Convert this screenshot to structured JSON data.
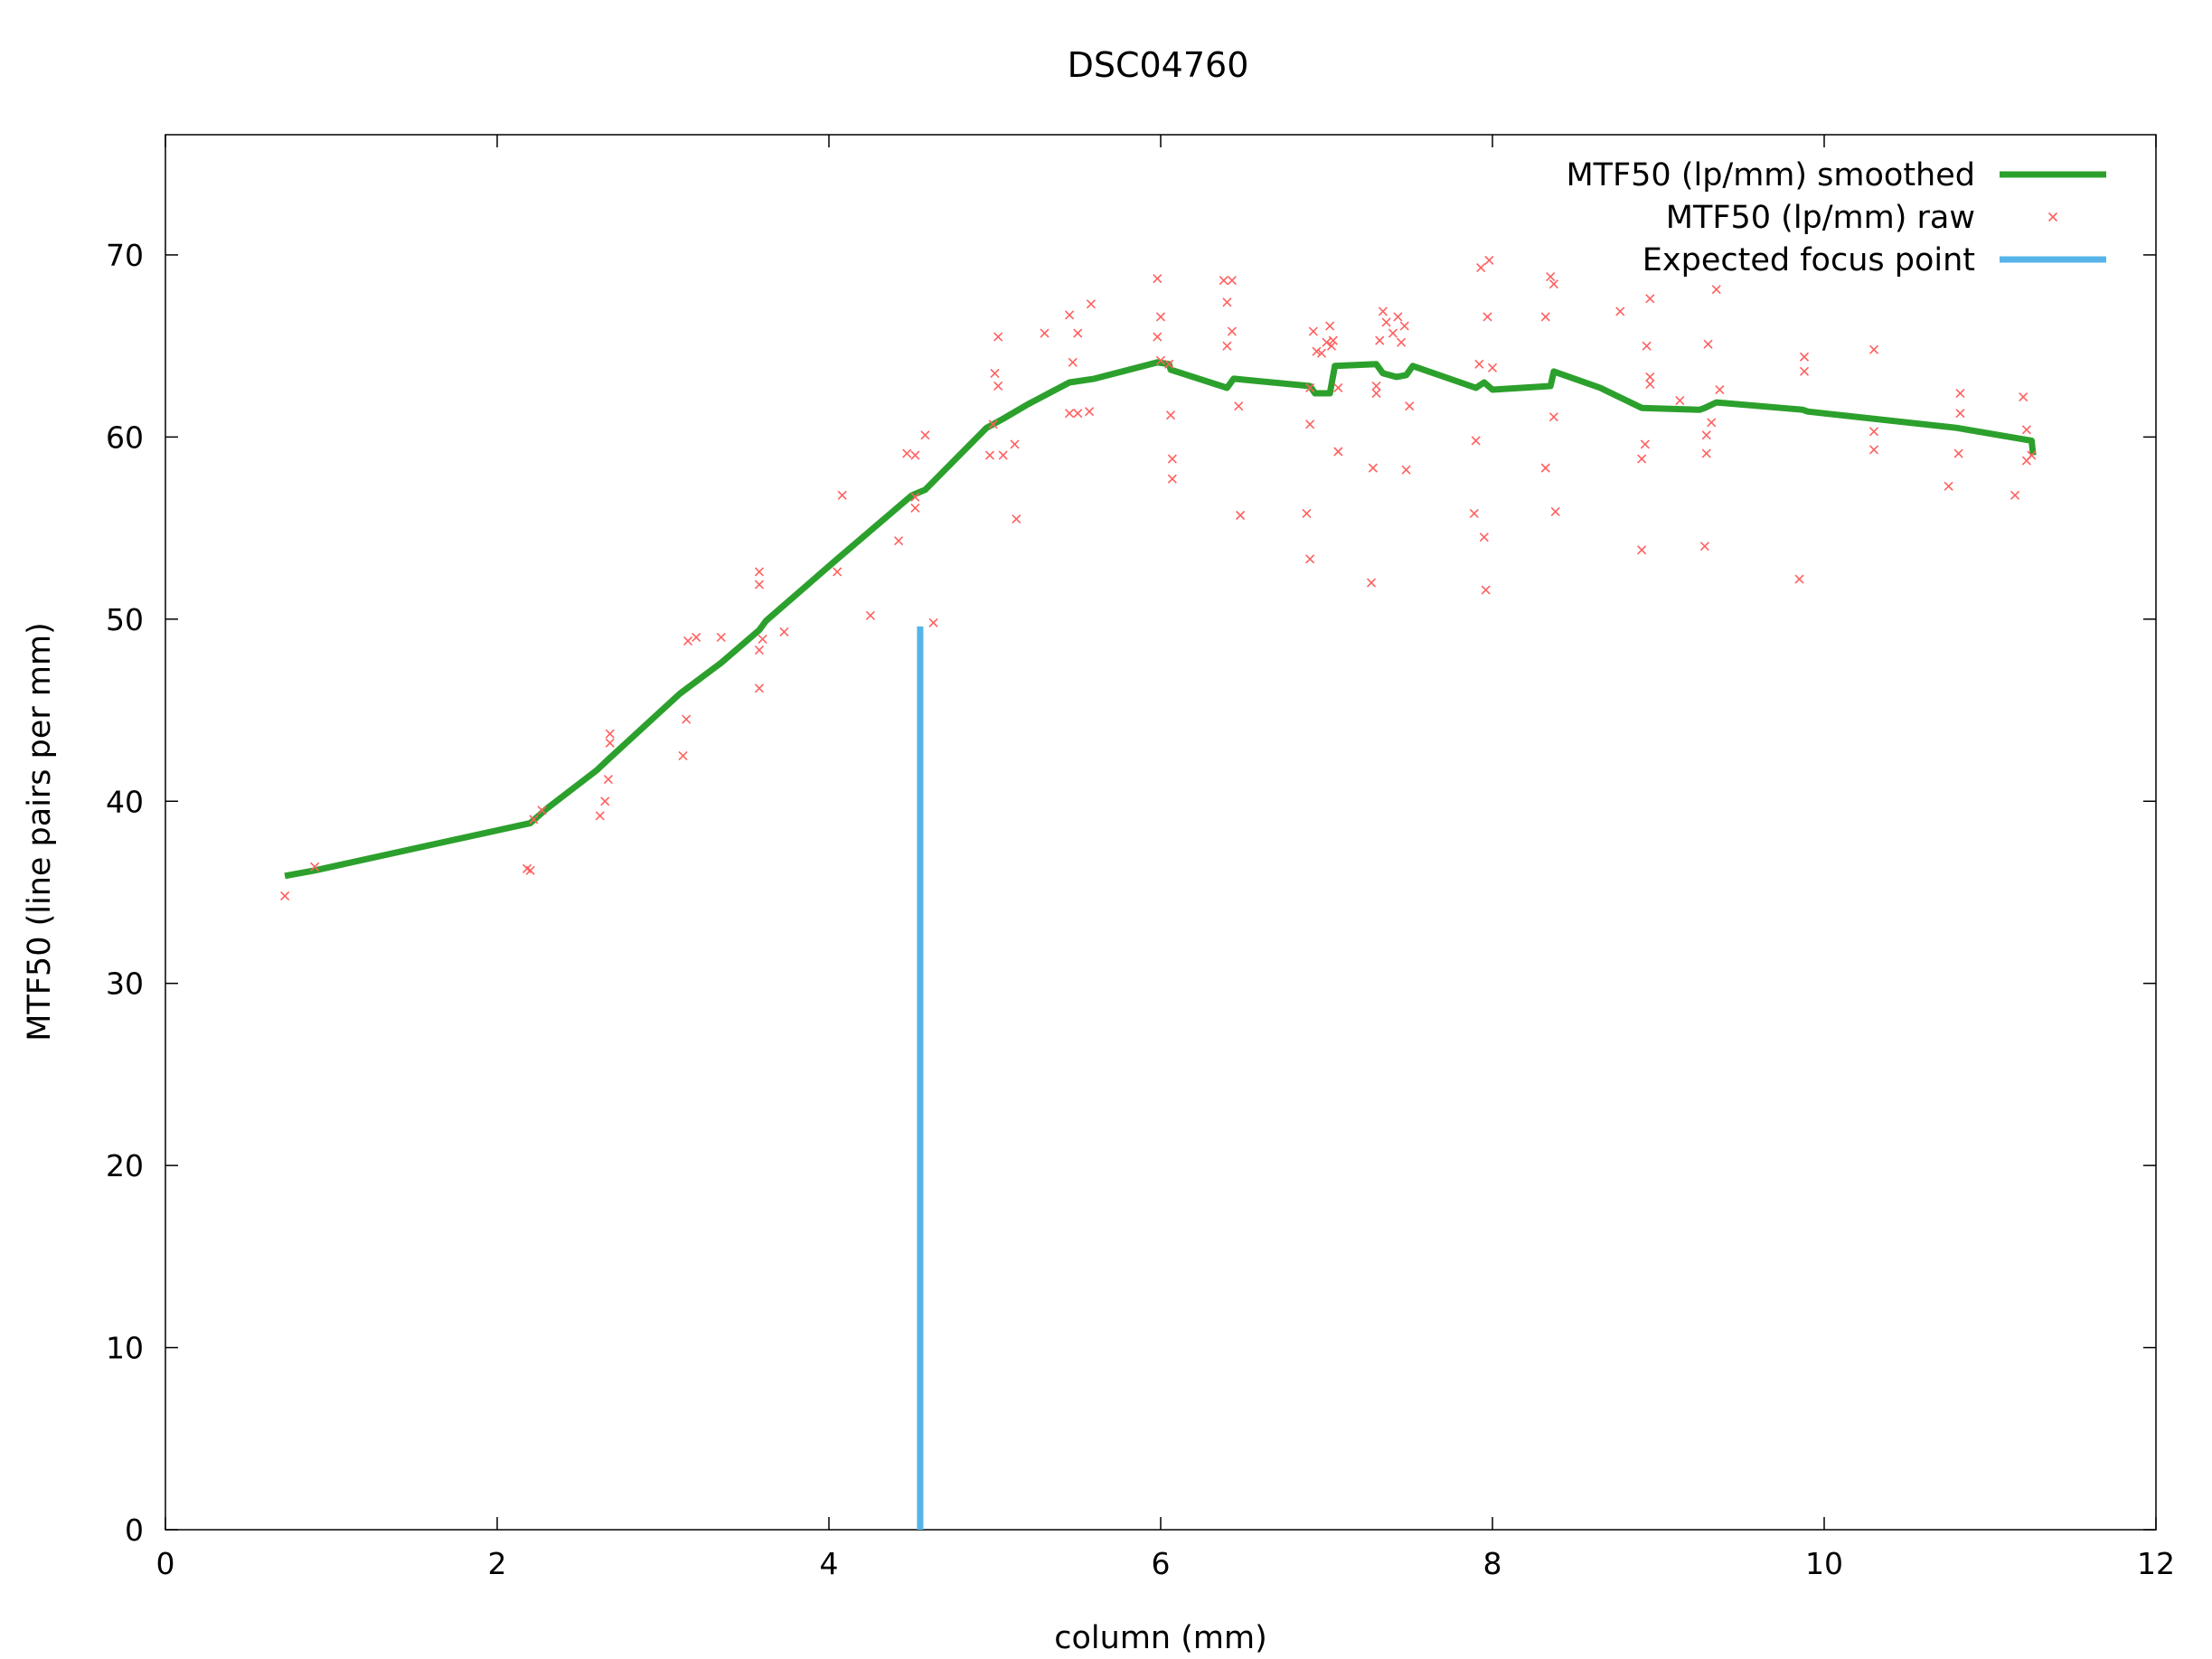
{
  "chart_data": {
    "type": "line",
    "title": "DSC04760",
    "xlabel": "column (mm)",
    "ylabel": "MTF50 (line pairs per mm)",
    "xlim": [
      0,
      12
    ],
    "ylim": [
      0,
      76.6
    ],
    "xticks": [
      0,
      2,
      4,
      6,
      8,
      10,
      12
    ],
    "yticks": [
      0,
      10,
      20,
      30,
      40,
      50,
      60,
      70
    ],
    "grid": false,
    "legend_position": "top-right",
    "series": [
      {
        "name": "MTF50 (lp/mm) smoothed",
        "kind": "line",
        "color": "#2ca02c",
        "points": [
          [
            0.72,
            35.9
          ],
          [
            0.9,
            36.2
          ],
          [
            2.2,
            38.8
          ],
          [
            2.3,
            39.6
          ],
          [
            2.6,
            41.7
          ],
          [
            2.67,
            42.3
          ],
          [
            3.1,
            45.9
          ],
          [
            3.35,
            47.6
          ],
          [
            3.58,
            49.4
          ],
          [
            3.62,
            49.9
          ],
          [
            4.05,
            53.3
          ],
          [
            4.5,
            56.8
          ],
          [
            4.58,
            57.1
          ],
          [
            4.95,
            60.5
          ],
          [
            5.05,
            61.0
          ],
          [
            5.2,
            61.8
          ],
          [
            5.45,
            63.0
          ],
          [
            5.6,
            63.2
          ],
          [
            5.98,
            64.1
          ],
          [
            6.05,
            64.0
          ],
          [
            6.06,
            63.7
          ],
          [
            6.4,
            62.7
          ],
          [
            6.44,
            63.2
          ],
          [
            6.9,
            62.8
          ],
          [
            6.93,
            62.4
          ],
          [
            7.02,
            62.4
          ],
          [
            7.05,
            63.9
          ],
          [
            7.3,
            64.0
          ],
          [
            7.34,
            63.5
          ],
          [
            7.42,
            63.3
          ],
          [
            7.48,
            63.4
          ],
          [
            7.52,
            63.9
          ],
          [
            7.9,
            62.7
          ],
          [
            7.95,
            63.0
          ],
          [
            8.0,
            62.6
          ],
          [
            8.35,
            62.8
          ],
          [
            8.37,
            63.6
          ],
          [
            8.65,
            62.7
          ],
          [
            8.9,
            61.6
          ],
          [
            9.25,
            61.5
          ],
          [
            9.28,
            61.6
          ],
          [
            9.35,
            61.9
          ],
          [
            9.87,
            61.5
          ],
          [
            9.9,
            61.4
          ],
          [
            10.8,
            60.5
          ],
          [
            11.25,
            59.8
          ],
          [
            11.26,
            59.0
          ]
        ]
      },
      {
        "name": "MTF50 (lp/mm) raw",
        "kind": "scatter",
        "color": "#ff6060",
        "points": [
          [
            0.72,
            34.8
          ],
          [
            0.9,
            36.4
          ],
          [
            2.18,
            36.3
          ],
          [
            2.2,
            36.2
          ],
          [
            2.22,
            39.0
          ],
          [
            2.27,
            39.5
          ],
          [
            2.62,
            39.2
          ],
          [
            2.65,
            40.0
          ],
          [
            2.67,
            41.2
          ],
          [
            2.68,
            43.2
          ],
          [
            2.68,
            43.7
          ],
          [
            3.12,
            42.5
          ],
          [
            3.14,
            44.5
          ],
          [
            3.15,
            48.8
          ],
          [
            3.2,
            49.0
          ],
          [
            3.35,
            49.0
          ],
          [
            3.58,
            46.2
          ],
          [
            3.58,
            48.3
          ],
          [
            3.6,
            48.9
          ],
          [
            3.58,
            51.9
          ],
          [
            3.58,
            52.6
          ],
          [
            3.73,
            49.3
          ],
          [
            4.05,
            52.6
          ],
          [
            4.08,
            56.8
          ],
          [
            4.25,
            50.2
          ],
          [
            4.42,
            54.3
          ],
          [
            4.47,
            59.1
          ],
          [
            4.52,
            56.1
          ],
          [
            4.52,
            56.7
          ],
          [
            4.52,
            59.0
          ],
          [
            4.58,
            60.1
          ],
          [
            4.63,
            49.8
          ],
          [
            4.97,
            59.0
          ],
          [
            4.99,
            60.7
          ],
          [
            5.0,
            63.5
          ],
          [
            5.02,
            65.5
          ],
          [
            5.02,
            62.8
          ],
          [
            5.05,
            59.0
          ],
          [
            5.12,
            59.6
          ],
          [
            5.13,
            55.5
          ],
          [
            5.3,
            65.7
          ],
          [
            5.45,
            61.3
          ],
          [
            5.45,
            66.7
          ],
          [
            5.47,
            64.1
          ],
          [
            5.5,
            61.3
          ],
          [
            5.5,
            65.7
          ],
          [
            5.57,
            61.4
          ],
          [
            5.58,
            67.3
          ],
          [
            5.98,
            68.7
          ],
          [
            5.98,
            65.5
          ],
          [
            6.0,
            64.2
          ],
          [
            6.0,
            66.6
          ],
          [
            6.05,
            64.0
          ],
          [
            6.06,
            61.2
          ],
          [
            6.07,
            58.8
          ],
          [
            6.07,
            57.7
          ],
          [
            6.38,
            68.6
          ],
          [
            6.4,
            67.4
          ],
          [
            6.4,
            65.0
          ],
          [
            6.43,
            68.6
          ],
          [
            6.43,
            65.8
          ],
          [
            6.47,
            61.7
          ],
          [
            6.48,
            55.7
          ],
          [
            6.88,
            55.8
          ],
          [
            6.9,
            53.3
          ],
          [
            6.9,
            60.7
          ],
          [
            6.9,
            62.7
          ],
          [
            6.92,
            65.8
          ],
          [
            6.94,
            64.7
          ],
          [
            6.97,
            64.6
          ],
          [
            7.0,
            65.2
          ],
          [
            7.02,
            66.1
          ],
          [
            7.03,
            65.0
          ],
          [
            7.04,
            65.3
          ],
          [
            7.07,
            62.7
          ],
          [
            7.07,
            59.2
          ],
          [
            7.27,
            52.0
          ],
          [
            7.28,
            58.3
          ],
          [
            7.3,
            62.8
          ],
          [
            7.3,
            62.4
          ],
          [
            7.32,
            65.3
          ],
          [
            7.34,
            66.9
          ],
          [
            7.36,
            66.3
          ],
          [
            7.4,
            65.7
          ],
          [
            7.43,
            66.6
          ],
          [
            7.45,
            65.2
          ],
          [
            7.47,
            66.1
          ],
          [
            7.5,
            61.7
          ],
          [
            7.48,
            58.2
          ],
          [
            7.89,
            55.8
          ],
          [
            7.9,
            59.8
          ],
          [
            7.92,
            64.0
          ],
          [
            7.93,
            69.3
          ],
          [
            7.95,
            54.5
          ],
          [
            7.96,
            51.6
          ],
          [
            7.97,
            66.6
          ],
          [
            7.98,
            69.7
          ],
          [
            8.0,
            63.8
          ],
          [
            8.32,
            66.6
          ],
          [
            8.32,
            58.3
          ],
          [
            8.35,
            68.8
          ],
          [
            8.37,
            68.4
          ],
          [
            8.37,
            61.1
          ],
          [
            8.38,
            55.9
          ],
          [
            8.77,
            66.9
          ],
          [
            8.9,
            53.8
          ],
          [
            8.9,
            58.8
          ],
          [
            8.92,
            59.6
          ],
          [
            8.93,
            65.0
          ],
          [
            8.95,
            63.3
          ],
          [
            8.95,
            62.9
          ],
          [
            8.95,
            67.6
          ],
          [
            9.13,
            62.0
          ],
          [
            9.28,
            54.0
          ],
          [
            9.29,
            59.1
          ],
          [
            9.29,
            60.1
          ],
          [
            9.3,
            65.1
          ],
          [
            9.32,
            60.8
          ],
          [
            9.35,
            68.1
          ],
          [
            9.37,
            62.6
          ],
          [
            9.85,
            52.2
          ],
          [
            9.88,
            64.4
          ],
          [
            9.88,
            63.6
          ],
          [
            10.3,
            64.8
          ],
          [
            10.3,
            59.3
          ],
          [
            10.3,
            60.3
          ],
          [
            10.75,
            57.3
          ],
          [
            10.81,
            59.1
          ],
          [
            10.82,
            61.3
          ],
          [
            10.82,
            62.4
          ],
          [
            11.15,
            56.8
          ],
          [
            11.2,
            62.2
          ],
          [
            11.22,
            58.7
          ],
          [
            11.22,
            60.4
          ],
          [
            11.25,
            59.0
          ]
        ]
      },
      {
        "name": "Expected focus point",
        "kind": "vline",
        "color": "#56b4e9",
        "x": 4.55,
        "y_range": [
          0,
          49.6
        ]
      }
    ]
  }
}
